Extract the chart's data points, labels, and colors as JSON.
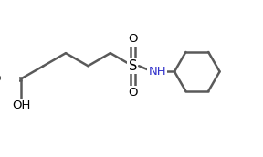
{
  "bg_color": "#ffffff",
  "line_color": "#5a5a5a",
  "atom_color_N": "#3333cc",
  "line_width": 1.8,
  "font_size": 9.5,
  "fig_width": 2.88,
  "fig_height": 1.72,
  "dpi": 100,
  "xlim": [
    0.0,
    7.5
  ],
  "ylim": [
    0.0,
    5.0
  ]
}
